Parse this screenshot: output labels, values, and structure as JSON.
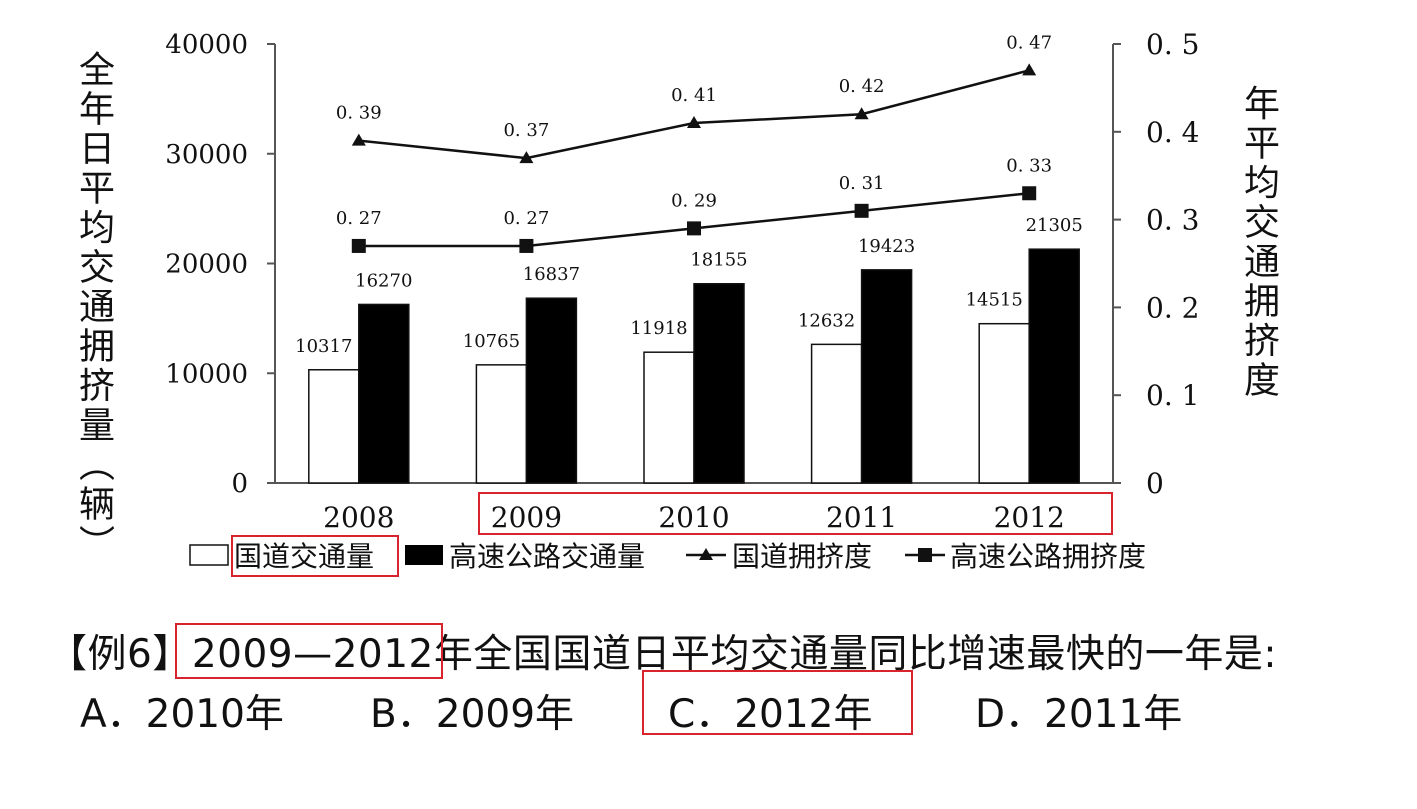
{
  "chart_data": {
    "type": "bar+line",
    "categories": [
      "2008",
      "2009",
      "2010",
      "2011",
      "2012"
    ],
    "y_left": {
      "label": "全年日平均交通拥挤量（辆）",
      "ticks": [
        "40000",
        "30000",
        "20000",
        "10000",
        "0"
      ],
      "range": [
        0,
        40000
      ]
    },
    "y_right": {
      "label": "年平均交通拥挤度",
      "ticks": [
        "0. 5",
        "0. 4",
        "0. 3",
        "0. 2",
        "0. 1",
        "0"
      ],
      "range": [
        0,
        0.5
      ]
    },
    "bar_series": [
      {
        "name": "国道交通量",
        "values": [
          10317,
          10765,
          11918,
          12632,
          14515
        ],
        "labels": [
          "10317",
          "10765",
          "11918",
          "12632",
          "14515"
        ],
        "color": "#ffffff"
      },
      {
        "name": "高速公路交通量",
        "values": [
          16270,
          16837,
          18155,
          19423,
          21305
        ],
        "labels": [
          "16270",
          "16837",
          "18155",
          "19423",
          "21305"
        ],
        "color": "#000000"
      }
    ],
    "line_series": [
      {
        "name": "国道拥挤度",
        "values": [
          0.39,
          0.37,
          0.41,
          0.42,
          0.47
        ],
        "labels": [
          "0. 39",
          "0. 37",
          "0. 41",
          "0. 42",
          "0. 47"
        ],
        "marker": "triangle"
      },
      {
        "name": "高速公路拥挤度",
        "values": [
          0.27,
          0.27,
          0.29,
          0.31,
          0.33
        ],
        "labels": [
          "0. 27",
          "0. 27",
          "0. 29",
          "0. 31",
          "0. 33"
        ],
        "marker": "square"
      }
    ],
    "legend": [
      "国道交通量",
      "高速公路交通量",
      "国道拥挤度",
      "高速公路拥挤度"
    ]
  },
  "question": {
    "prefix": "【例6】",
    "highlight": "2009—2012",
    "text": "年全国国道日平均交通量同比增速最快的一年是:"
  },
  "options": [
    {
      "letter": "A",
      "text": "A．2010年"
    },
    {
      "letter": "B",
      "text": "B．2009年"
    },
    {
      "letter": "C",
      "text": "C．2012年"
    },
    {
      "letter": "D",
      "text": "D．2011年"
    }
  ],
  "colors": {
    "highlight_box": "#d9232d"
  }
}
